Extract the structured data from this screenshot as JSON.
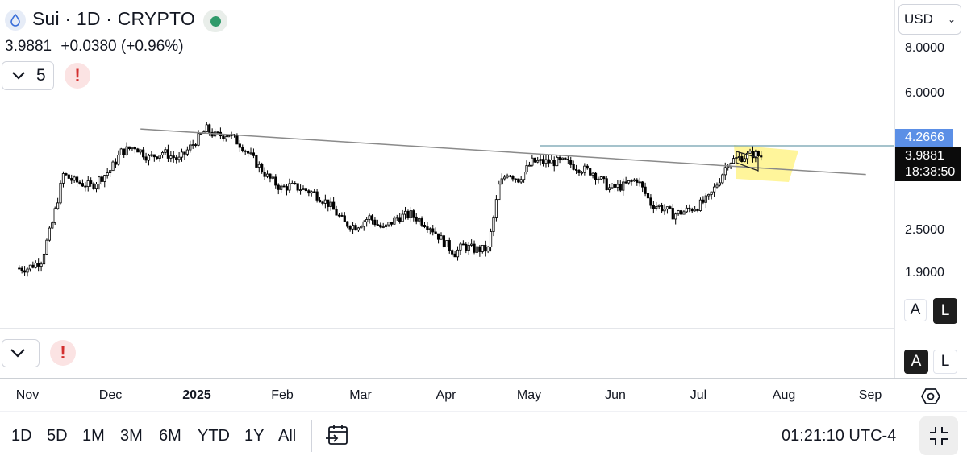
{
  "header": {
    "symbol_title": "Sui · 1D · CRYPTO",
    "price": "3.9881",
    "change": "+0.0380 (+0.96%)",
    "indicator_count": "5",
    "alert_icon": "!",
    "status_color": "#2f9a6a"
  },
  "right_axis": {
    "currency": "USD",
    "ticks": [
      "8.0000",
      "6.0000",
      "2.5000",
      "1.9000"
    ],
    "level_tag": "4.2666",
    "price_tag": "3.9881",
    "countdown": "18:38:50",
    "scale_auto": "A",
    "scale_log": "L"
  },
  "x_axis": {
    "labels": [
      "Nov",
      "Dec",
      "2025",
      "Feb",
      "Mar",
      "Apr",
      "May",
      "Jun",
      "Jul",
      "Aug",
      "Sep"
    ]
  },
  "bottom_bar": {
    "ranges": [
      "1D",
      "5D",
      "1M",
      "3M",
      "6M",
      "YTD",
      "1Y",
      "All"
    ],
    "clock": "01:21:10 UTC-4"
  },
  "colors": {
    "level_tag": "#5b8fe6",
    "price_tag": "#0b0b0b",
    "highlight": "#fff27a",
    "candle": "#000000"
  },
  "icons": {
    "symbol": "sui-drop-icon",
    "settings": "settings-hex-icon",
    "calendar": "calendar-icon",
    "fullscreen": "exit-fullscreen-icon"
  },
  "chart_data": {
    "type": "candlestick",
    "title": "Sui · 1D · CRYPTO",
    "scale": "log",
    "y_ticks": [
      1.9,
      2.5,
      6.0,
      8.0
    ],
    "x_ticks": [
      "Nov",
      "Dec",
      "2025",
      "Feb",
      "Mar",
      "Apr",
      "May",
      "Jun",
      "Jul",
      "Aug",
      "Sep"
    ],
    "close_path": {
      "dates": [
        "2024-11-01",
        "2024-11-06",
        "2024-11-10",
        "2024-11-14",
        "2024-11-18",
        "2024-11-24",
        "2024-12-01",
        "2024-12-05",
        "2024-12-10",
        "2024-12-15",
        "2024-12-20",
        "2024-12-26",
        "2025-01-01",
        "2025-01-05",
        "2025-01-08",
        "2025-01-13",
        "2025-01-18",
        "2025-01-22",
        "2025-01-27",
        "2025-02-01",
        "2025-02-04",
        "2025-02-08",
        "2025-02-13",
        "2025-02-18",
        "2025-02-24",
        "2025-02-28",
        "2025-03-05",
        "2025-03-10",
        "2025-03-15",
        "2025-03-20",
        "2025-03-27",
        "2025-04-01",
        "2025-04-05",
        "2025-04-08",
        "2025-04-12",
        "2025-04-17",
        "2025-04-21",
        "2025-04-24",
        "2025-04-28",
        "2025-05-03",
        "2025-05-10",
        "2025-05-15",
        "2025-05-20",
        "2025-05-25",
        "2025-05-31",
        "2025-06-05",
        "2025-06-10",
        "2025-06-15",
        "2025-06-20",
        "2025-06-23",
        "2025-06-27",
        "2025-07-02",
        "2025-07-06",
        "2025-07-10",
        "2025-07-13",
        "2025-07-17",
        "2025-07-22",
        "2025-07-25"
      ],
      "close": [
        1.95,
        2.05,
        2.6,
        3.55,
        3.4,
        3.3,
        3.65,
        4.1,
        4.25,
        3.95,
        4.1,
        3.9,
        4.4,
        4.75,
        4.55,
        4.6,
        4.25,
        3.9,
        3.5,
        3.25,
        3.3,
        3.25,
        3.15,
        2.95,
        2.6,
        2.55,
        2.7,
        2.5,
        2.7,
        2.75,
        2.55,
        2.3,
        2.15,
        2.25,
        2.2,
        2.2,
        3.3,
        3.6,
        3.45,
        3.85,
        3.85,
        3.85,
        3.7,
        3.6,
        3.25,
        3.3,
        3.45,
        2.95,
        2.85,
        2.75,
        2.8,
        2.9,
        3.05,
        3.45,
        3.85,
        3.95,
        4.05,
        3.9881
      ]
    },
    "trendline": {
      "start_date": "2024-12-12",
      "start_value": 4.75,
      "end_date": "2025-09-01",
      "end_value": 3.55
    },
    "horizontal_level": 4.2666,
    "last_price": 3.9881,
    "change": 0.038,
    "change_percent": 0.96
  }
}
